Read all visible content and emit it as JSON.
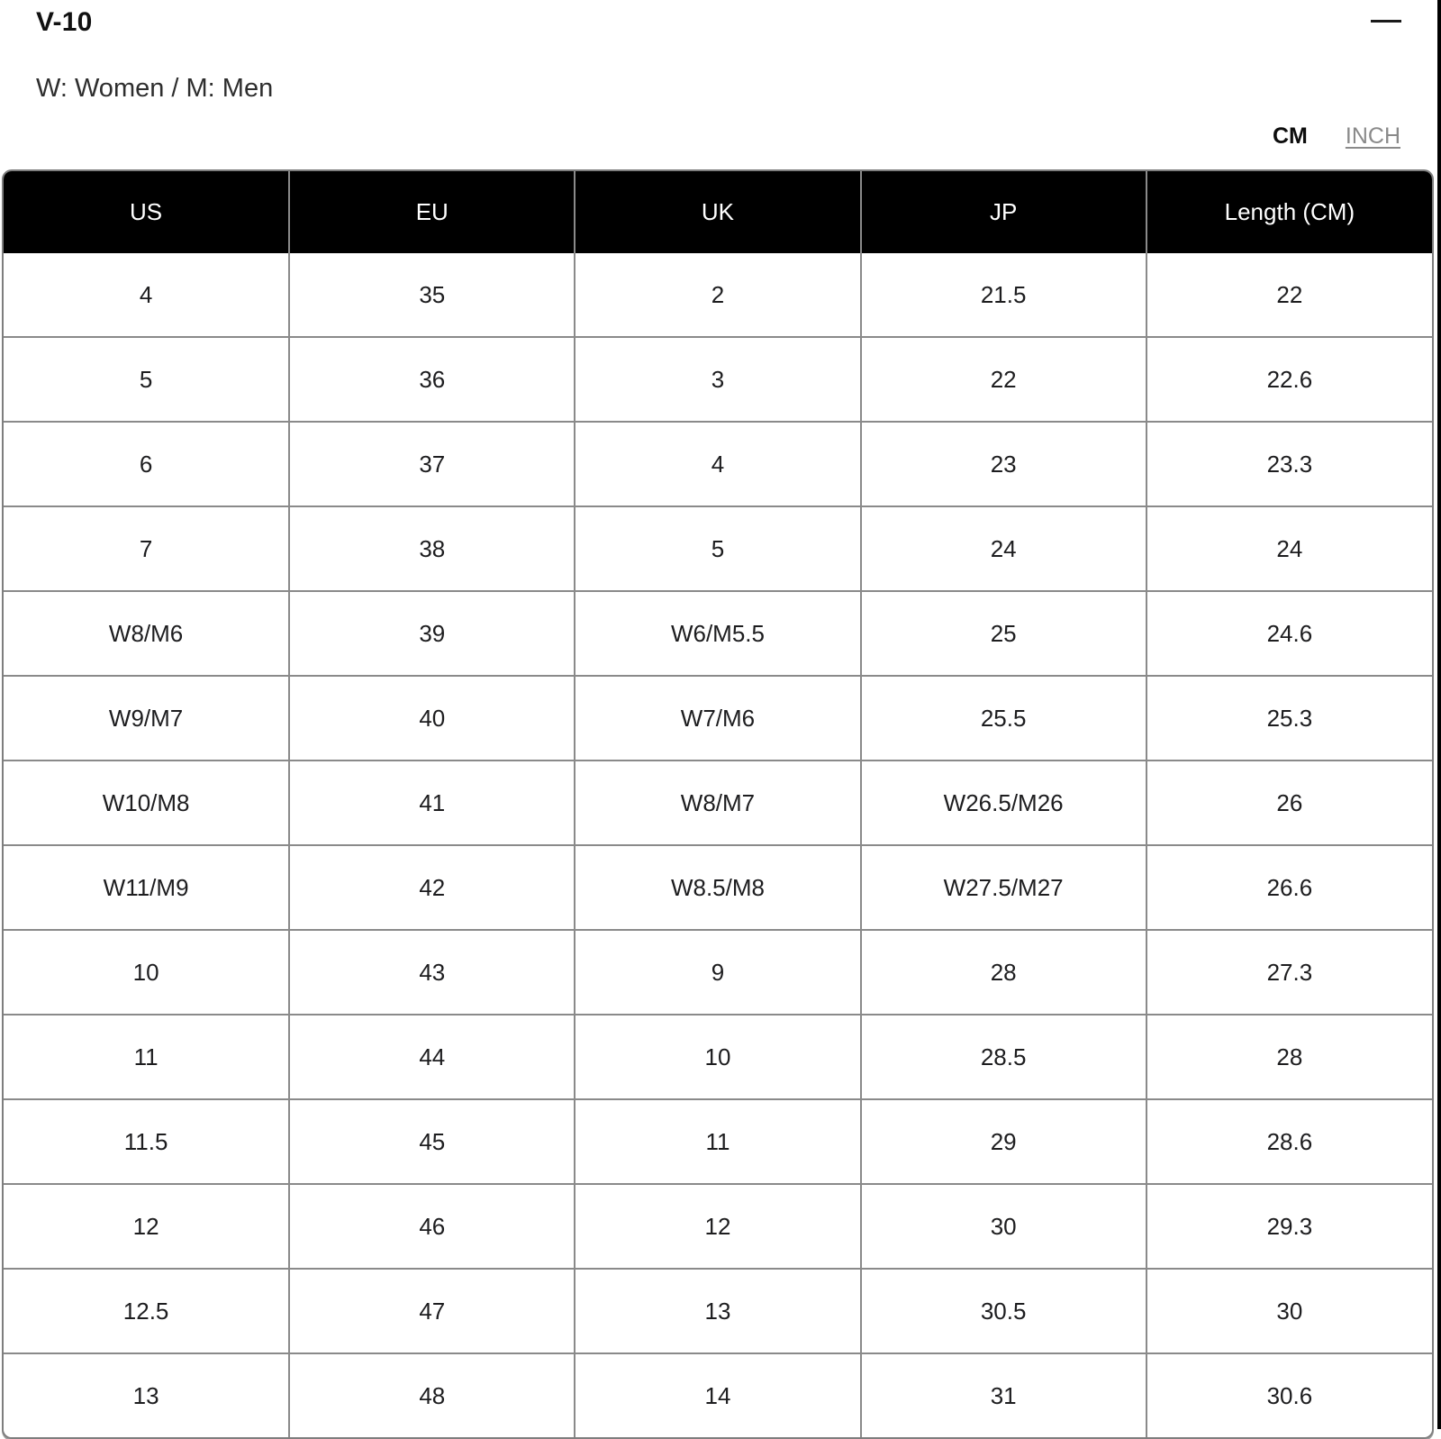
{
  "panel": {
    "title": "V-10",
    "legend": "W: Women / M: Men"
  },
  "unit_toggle": {
    "options": [
      {
        "label": "CM",
        "active": true
      },
      {
        "label": "INCH",
        "active": false
      }
    ]
  },
  "size_table": {
    "columns": [
      "US",
      "EU",
      "UK",
      "JP",
      "Length (CM)"
    ],
    "rows": [
      [
        "4",
        "35",
        "2",
        "21.5",
        "22"
      ],
      [
        "5",
        "36",
        "3",
        "22",
        "22.6"
      ],
      [
        "6",
        "37",
        "4",
        "23",
        "23.3"
      ],
      [
        "7",
        "38",
        "5",
        "24",
        "24"
      ],
      [
        "W8/M6",
        "39",
        "W6/M5.5",
        "25",
        "24.6"
      ],
      [
        "W9/M7",
        "40",
        "W7/M6",
        "25.5",
        "25.3"
      ],
      [
        "W10/M8",
        "41",
        "W8/M7",
        "W26.5/M26",
        "26"
      ],
      [
        "W11/M9",
        "42",
        "W8.5/M8",
        "W27.5/M27",
        "26.6"
      ],
      [
        "10",
        "43",
        "9",
        "28",
        "27.3"
      ],
      [
        "11",
        "44",
        "10",
        "28.5",
        "28"
      ],
      [
        "11.5",
        "45",
        "11",
        "29",
        "28.6"
      ],
      [
        "12",
        "46",
        "12",
        "30",
        "29.3"
      ],
      [
        "12.5",
        "47",
        "13",
        "30.5",
        "30"
      ],
      [
        "13",
        "48",
        "14",
        "31",
        "30.6"
      ]
    ]
  },
  "colors": {
    "header_bg": "#000000",
    "header_text": "#ffffff",
    "cell_text": "#1d1d1f",
    "grid_line": "#8a8a8a",
    "outer_border": "#7e7e7e",
    "inactive_toggle": "#8a8a8a",
    "edge_line": "#000000"
  }
}
